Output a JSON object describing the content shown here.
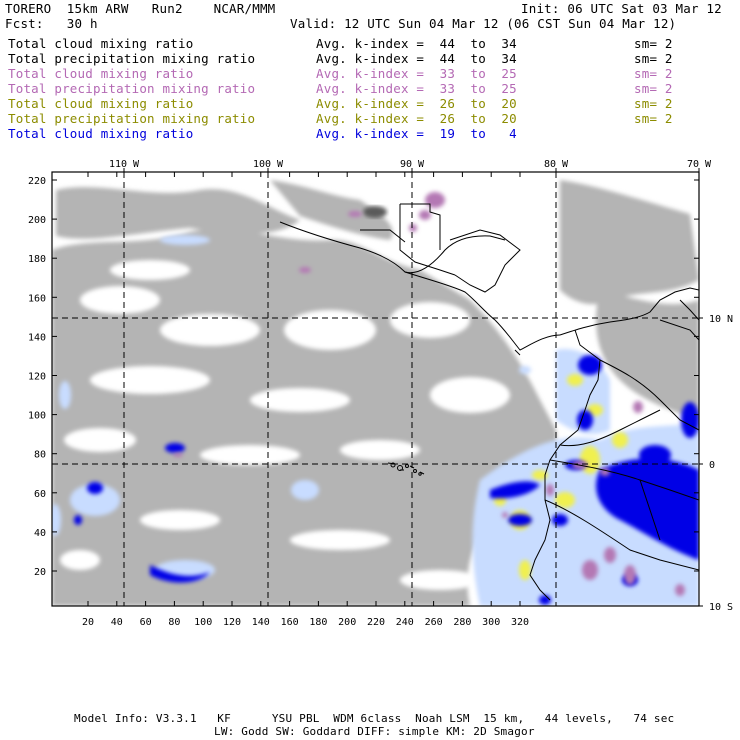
{
  "header": {
    "model": "TORERO  15km ARW   Run2    NCAR/MMM",
    "init": "Init: 06 UTC Sat 03 Mar 12",
    "fcst": "Fcst:   30 h",
    "valid": "Valid: 12 UTC Sun 04 Mar 12 (06 CST Sun 04 Mar 12)"
  },
  "legend": [
    {
      "field": "Total cloud mixing ratio",
      "kindex": "Avg. k-index =  44  to  34",
      "sm": "sm= 2",
      "color": "#000000"
    },
    {
      "field": "Total precipitation mixing ratio",
      "kindex": "Avg. k-index =  44  to  34",
      "sm": "sm= 2",
      "color": "#000000"
    },
    {
      "field": "Total cloud mixing ratio",
      "kindex": "Avg. k-index =  33  to  25",
      "sm": "sm= 2",
      "color": "#b469b4"
    },
    {
      "field": "Total precipitation mixing ratio",
      "kindex": "Avg. k-index =  33  to  25",
      "sm": "sm= 2",
      "color": "#b469b4"
    },
    {
      "field": "Total cloud mixing ratio",
      "kindex": "Avg. k-index =  26  to  20",
      "sm": "sm= 2",
      "color": "#8c8c00"
    },
    {
      "field": "Total precipitation mixing ratio",
      "kindex": "Avg. k-index =  26  to  20",
      "sm": "sm= 2",
      "color": "#8c8c00"
    },
    {
      "field": "Total cloud mixing ratio",
      "kindex": "Avg. k-index =  19  to   4",
      "sm": "",
      "color": "#0000dc"
    }
  ],
  "map": {
    "lon_labels": [
      "110 W",
      "100 W",
      "90 W",
      "80 W",
      "70 W"
    ],
    "lat_labels": [
      "10 N",
      "0",
      "10 S"
    ],
    "y_ticks": [
      "20",
      "40",
      "60",
      "80",
      "100",
      "120",
      "140",
      "160",
      "180",
      "200",
      "220"
    ],
    "x_ticks": [
      "20",
      "40",
      "60",
      "80",
      "100",
      "120",
      "140",
      "160",
      "180",
      "200",
      "220",
      "240",
      "260",
      "280",
      "300",
      "320"
    ],
    "colors": {
      "cloud_low": "#b4b4b4",
      "cloud_dark": "#5a5a5a",
      "mid": "#b478b4",
      "shallow": "#f0f050",
      "light_blue": "#c8dcff",
      "deep_blue": "#0000e6",
      "coast": "#000000"
    }
  },
  "footer": {
    "line1": "Model Info: V3.3.1   KF      YSU PBL  WDM 6class  Noah LSM  15 km,   44 levels,   74 sec",
    "line2": "LW: Godd SW: Goddard DIFF: simple KM: 2D Smagor"
  }
}
